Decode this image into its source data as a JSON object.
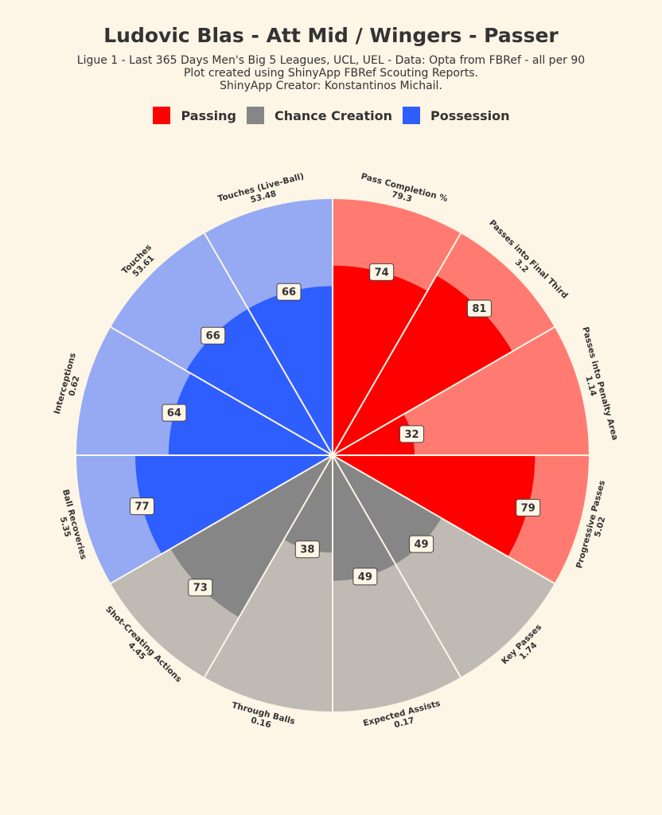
{
  "title": "Ludovic Blas - Att Mid / Wingers - Passer",
  "subtitle_lines": [
    "Ligue 1 - Last 365 Days Men's Big 5 Leagues, UCL, UEL  - Data: Opta from FBRef - all per 90",
    "Plot created using ShinyApp FBRef Scouting Reports.",
    "ShinyApp Creator: Konstantinos Michail."
  ],
  "legend": [
    {
      "name": "Passing",
      "color": "#ff0000"
    },
    {
      "name": "Chance Creation",
      "color": "#868686"
    },
    {
      "name": "Possession",
      "color": "#2f5eff"
    }
  ],
  "chart_data": {
    "type": "pizza",
    "scale_max": 100,
    "background_colors": {
      "Passing": "#ff7b72",
      "Chance Creation": "#bfbab3",
      "Possession": "#96a9f3"
    },
    "slices": [
      {
        "stat": "Pass Completion %",
        "value_label": "79.3",
        "percentile": 74,
        "group": "Passing"
      },
      {
        "stat": "Passes into Final Third",
        "value_label": "3.2",
        "percentile": 81,
        "group": "Passing"
      },
      {
        "stat": "Passes into Penalty Area",
        "value_label": "1.14",
        "percentile": 32,
        "group": "Passing"
      },
      {
        "stat": "Progressive Passes",
        "value_label": "5.02",
        "percentile": 79,
        "group": "Passing"
      },
      {
        "stat": "Key Passes",
        "value_label": "1.74",
        "percentile": 49,
        "group": "Chance Creation"
      },
      {
        "stat": "Expected Assists",
        "value_label": "0.17",
        "percentile": 49,
        "group": "Chance Creation"
      },
      {
        "stat": "Through Balls",
        "value_label": "0.16",
        "percentile": 38,
        "group": "Chance Creation"
      },
      {
        "stat": "Shot-Creating Actions",
        "value_label": "4.45",
        "percentile": 73,
        "group": "Chance Creation"
      },
      {
        "stat": "Ball Recoveries",
        "value_label": "5.35",
        "percentile": 77,
        "group": "Possession"
      },
      {
        "stat": "Interceptions",
        "value_label": "0.62",
        "percentile": 64,
        "group": "Possession"
      },
      {
        "stat": "Touches",
        "value_label": "53.61",
        "percentile": 66,
        "group": "Possession"
      },
      {
        "stat": "Touches (Live-Ball)",
        "value_label": "53.48",
        "percentile": 66,
        "group": "Possession"
      }
    ]
  }
}
